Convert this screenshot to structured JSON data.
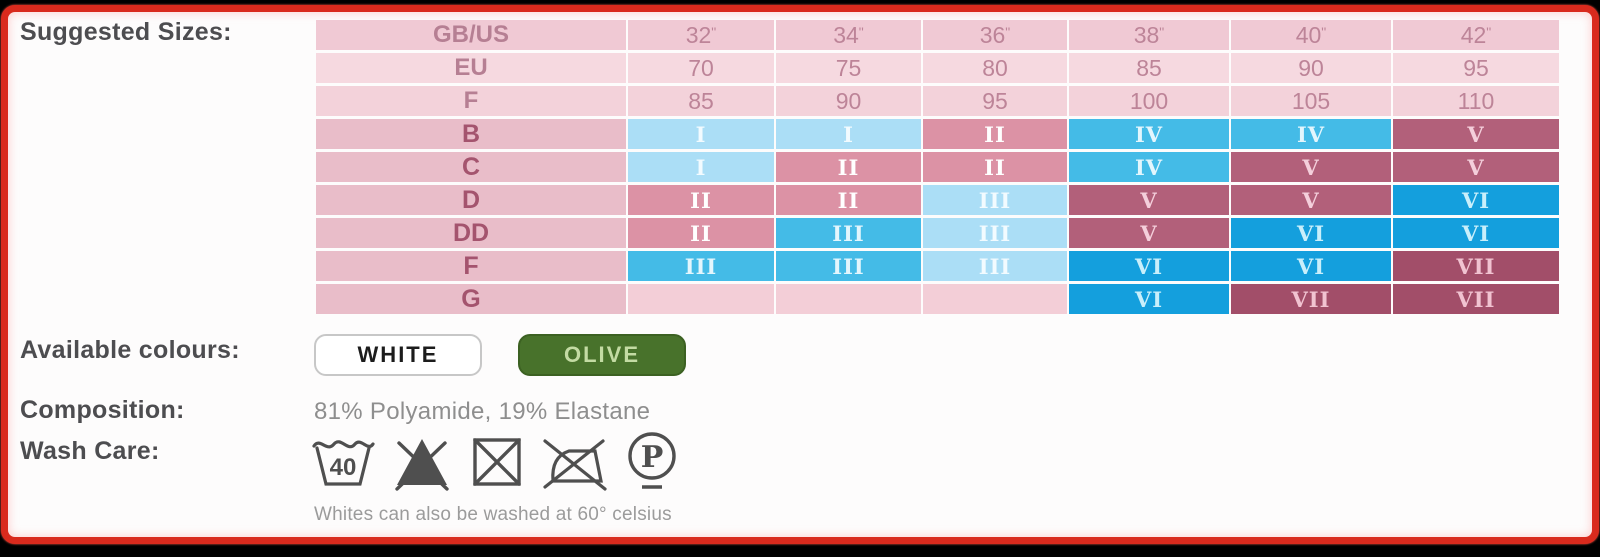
{
  "frame": {
    "highlight_color": "#d92a1d",
    "outer_color": "#000000",
    "background": "#fdfcfc"
  },
  "labels": {
    "suggested_sizes": "Suggested Sizes:",
    "available_colours": "Available colours:",
    "composition": "Composition:",
    "wash_care": "Wash Care:"
  },
  "size_chart": {
    "type": "table",
    "palette": {
      "blue_light": {
        "bg": "#abdef6",
        "text": "#f2fbff"
      },
      "blue_mid": {
        "bg": "#44bbe7",
        "text": "#e3f6fd"
      },
      "blue_strong": {
        "bg": "#149fdd",
        "text": "#c9effb"
      },
      "rose": {
        "bg": "#dc92a5",
        "text": "#ffffff"
      },
      "mauve": {
        "bg": "#b2607a",
        "text": "#f4cfdb"
      },
      "maroon": {
        "bg": "#a24e69",
        "text": "#f1c3d1"
      },
      "empty": {
        "bg": "#efc5d0",
        "text": "#efc5d0"
      }
    },
    "header_row_bgs": [
      "#f0c9d4",
      "#f6d9e0",
      "#f3d2da"
    ],
    "cup_label_bg": "#e9bdc9",
    "cup_empty_bg": "#f3ced7",
    "header_rows": [
      {
        "label": "GB/US",
        "values": [
          "32\"",
          "34\"",
          "36\"",
          "38\"",
          "40\"",
          "42\""
        ]
      },
      {
        "label": "EU",
        "values": [
          "70",
          "75",
          "80",
          "85",
          "90",
          "95"
        ]
      },
      {
        "label": "F",
        "values": [
          "85",
          "90",
          "95",
          "100",
          "105",
          "110"
        ]
      }
    ],
    "cup_rows": [
      {
        "label": "B",
        "cells": [
          {
            "t": "I",
            "c": "blue_light"
          },
          {
            "t": "I",
            "c": "blue_light"
          },
          {
            "t": "II",
            "c": "rose"
          },
          {
            "t": "IV",
            "c": "blue_mid"
          },
          {
            "t": "IV",
            "c": "blue_mid"
          },
          {
            "t": "V",
            "c": "mauve"
          }
        ]
      },
      {
        "label": "C",
        "cells": [
          {
            "t": "I",
            "c": "blue_light"
          },
          {
            "t": "II",
            "c": "rose"
          },
          {
            "t": "II",
            "c": "rose"
          },
          {
            "t": "IV",
            "c": "blue_mid"
          },
          {
            "t": "V",
            "c": "mauve"
          },
          {
            "t": "V",
            "c": "mauve"
          }
        ]
      },
      {
        "label": "D",
        "cells": [
          {
            "t": "II",
            "c": "rose"
          },
          {
            "t": "II",
            "c": "rose"
          },
          {
            "t": "III",
            "c": "blue_light"
          },
          {
            "t": "V",
            "c": "mauve"
          },
          {
            "t": "V",
            "c": "mauve"
          },
          {
            "t": "VI",
            "c": "blue_strong"
          }
        ]
      },
      {
        "label": "DD",
        "cells": [
          {
            "t": "II",
            "c": "rose"
          },
          {
            "t": "III",
            "c": "blue_mid"
          },
          {
            "t": "III",
            "c": "blue_light"
          },
          {
            "t": "V",
            "c": "mauve"
          },
          {
            "t": "VI",
            "c": "blue_strong"
          },
          {
            "t": "VI",
            "c": "blue_strong"
          }
        ]
      },
      {
        "label": "F",
        "cells": [
          {
            "t": "III",
            "c": "blue_mid"
          },
          {
            "t": "III",
            "c": "blue_mid"
          },
          {
            "t": "III",
            "c": "blue_light"
          },
          {
            "t": "VI",
            "c": "blue_strong"
          },
          {
            "t": "VI",
            "c": "blue_strong"
          },
          {
            "t": "VII",
            "c": "maroon"
          }
        ]
      },
      {
        "label": "G",
        "cells": [
          {
            "t": "",
            "c": "empty"
          },
          {
            "t": "",
            "c": "empty"
          },
          {
            "t": "",
            "c": "empty"
          },
          {
            "t": "VI",
            "c": "blue_strong"
          },
          {
            "t": "VII",
            "c": "maroon"
          },
          {
            "t": "VII",
            "c": "maroon"
          }
        ]
      }
    ]
  },
  "colours": {
    "options": [
      {
        "label": "WHITE",
        "bg": "#ffffff",
        "text_color": "#1c1c1c",
        "border": "#c7c7c7"
      },
      {
        "label": "OLIVE",
        "bg": "#48722b",
        "text_color": "#c3dba3",
        "border": "#3c6122"
      }
    ]
  },
  "composition": {
    "value": "81% Polyamide, 19% Elastane"
  },
  "wash_care": {
    "icons": [
      {
        "name": "machine-wash-40-icon",
        "glyph": "40"
      },
      {
        "name": "do-not-bleach-icon",
        "glyph": ""
      },
      {
        "name": "do-not-tumble-dry-icon",
        "glyph": ""
      },
      {
        "name": "do-not-iron-icon",
        "glyph": ""
      },
      {
        "name": "professional-clean-p-icon",
        "glyph": "P"
      }
    ],
    "note": "Whites can also be washed at 60° celsius"
  }
}
